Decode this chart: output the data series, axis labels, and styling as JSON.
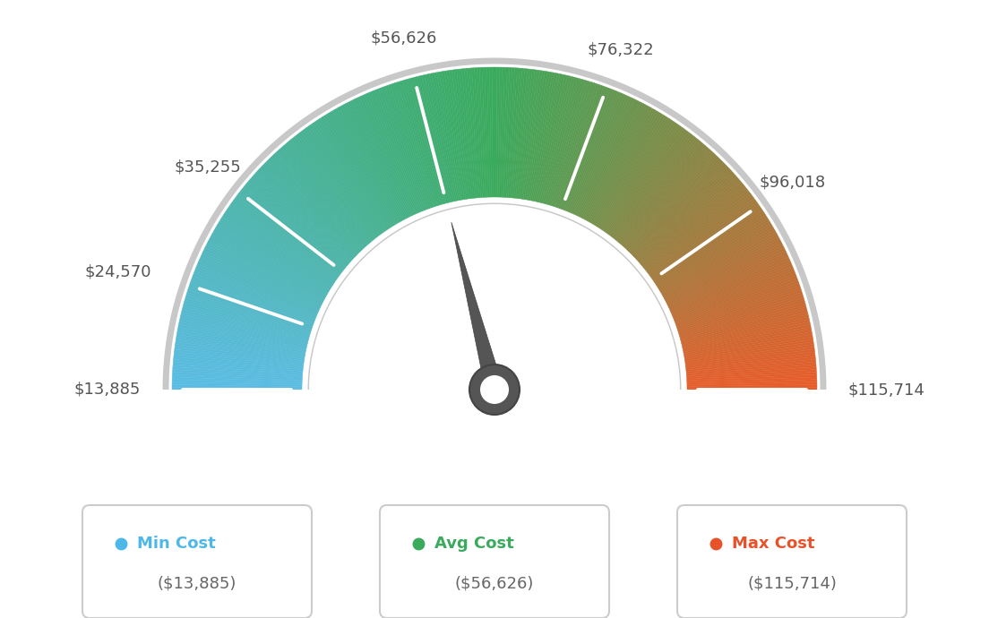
{
  "min_val": 13885,
  "avg_val": 56626,
  "max_val": 115714,
  "tick_labels": [
    "$13,885",
    "$24,570",
    "$35,255",
    "$56,626",
    "$76,322",
    "$96,018",
    "$115,714"
  ],
  "tick_values": [
    13885,
    24570,
    35255,
    56626,
    76322,
    96018,
    115714
  ],
  "legend_items": [
    {
      "label": "Min Cost",
      "value": "($13,885)",
      "color": "#4db8e8"
    },
    {
      "label": "Avg Cost",
      "value": "($56,626)",
      "color": "#3aaa5c"
    },
    {
      "label": "Max Cost",
      "value": "($115,714)",
      "color": "#e8522a"
    }
  ],
  "background_color": "#ffffff",
  "gauge_colors": {
    "blue": [
      91,
      188,
      228
    ],
    "green": [
      58,
      170,
      92
    ],
    "orange": [
      232,
      92,
      42
    ]
  }
}
